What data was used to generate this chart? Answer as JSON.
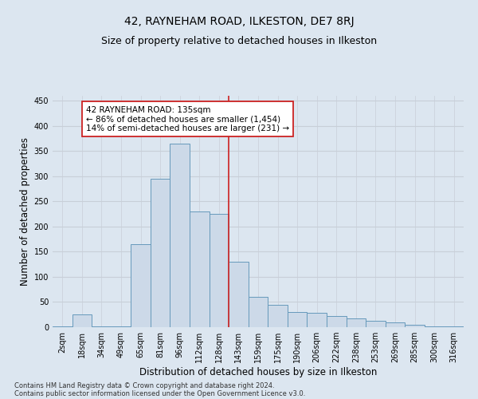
{
  "title": "42, RAYNEHAM ROAD, ILKESTON, DE7 8RJ",
  "subtitle": "Size of property relative to detached houses in Ilkeston",
  "xlabel": "Distribution of detached houses by size in Ilkeston",
  "ylabel": "Number of detached properties",
  "footnote1": "Contains HM Land Registry data © Crown copyright and database right 2024.",
  "footnote2": "Contains public sector information licensed under the Open Government Licence v3.0.",
  "bar_labels": [
    "2sqm",
    "18sqm",
    "34sqm",
    "49sqm",
    "65sqm",
    "81sqm",
    "96sqm",
    "112sqm",
    "128sqm",
    "143sqm",
    "159sqm",
    "175sqm",
    "190sqm",
    "206sqm",
    "222sqm",
    "238sqm",
    "253sqm",
    "269sqm",
    "285sqm",
    "300sqm",
    "316sqm"
  ],
  "bar_heights": [
    1,
    25,
    1,
    1,
    165,
    295,
    365,
    230,
    225,
    130,
    60,
    45,
    30,
    28,
    22,
    17,
    12,
    10,
    4,
    2,
    1
  ],
  "bar_color": "#ccd9e8",
  "bar_edge_color": "#6699bb",
  "vline_x": 8,
  "vline_color": "#cc2222",
  "annotation_text": "42 RAYNEHAM ROAD: 135sqm\n← 86% of detached houses are smaller (1,454)\n14% of semi-detached houses are larger (231) →",
  "annotation_box_color": "#cc2222",
  "annotation_bg": "#ffffff",
  "ylim": [
    0,
    460
  ],
  "yticks": [
    0,
    50,
    100,
    150,
    200,
    250,
    300,
    350,
    400,
    450
  ],
  "grid_color": "#c8cfd8",
  "bg_color": "#dce6f0",
  "title_fontsize": 10,
  "subtitle_fontsize": 9,
  "xlabel_fontsize": 8.5,
  "ylabel_fontsize": 8.5,
  "tick_fontsize": 7,
  "annot_fontsize": 7.5,
  "footnote_fontsize": 6
}
